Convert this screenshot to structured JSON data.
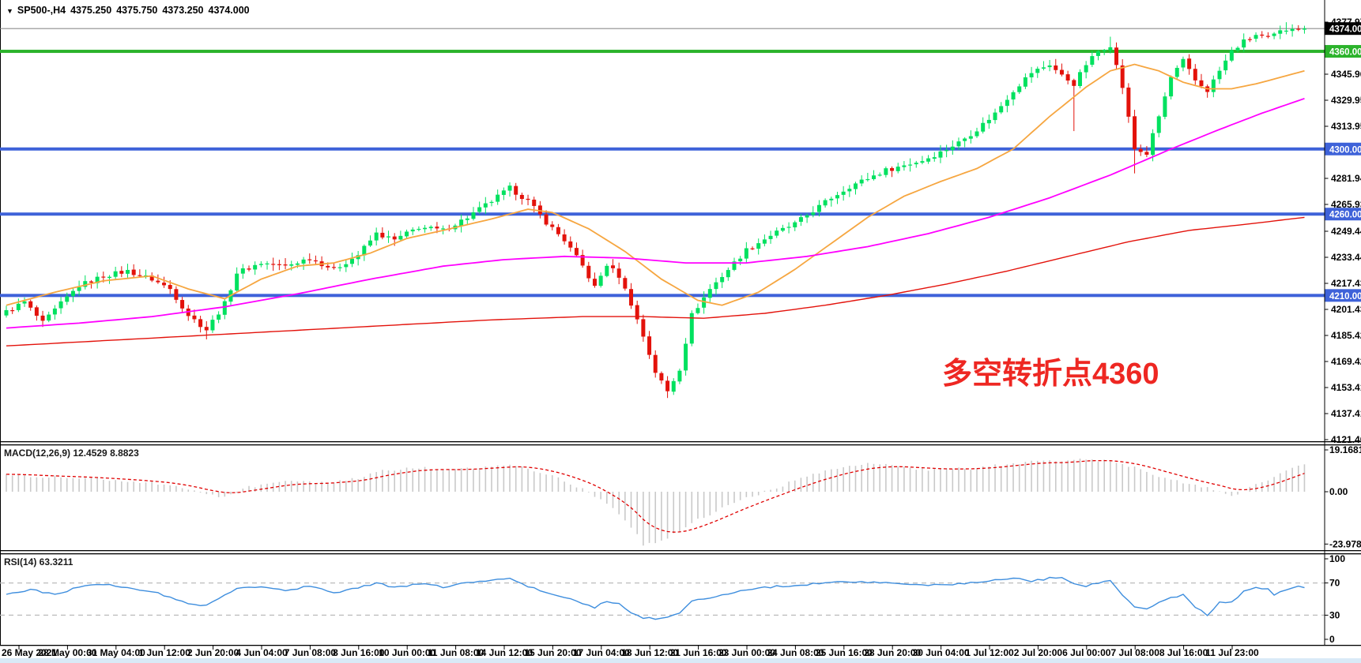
{
  "header": {
    "dropdown_icon": "▼",
    "symbol": "SP500-,H4",
    "open": "4375.250",
    "high": "4375.750",
    "low": "4373.250",
    "close": "4374.000"
  },
  "annotation": {
    "text": "多空转折点4360",
    "color": "#ee2722"
  },
  "colors": {
    "background": "#ffffff",
    "candle_up": "#00e15f",
    "candle_down": "#e3120b",
    "ma_fast": "#f6a640",
    "ma_medium": "#ff00ff",
    "ma_slow": "#e3120b",
    "level_green": "#2bb32b",
    "level_blue": "#3e62d9",
    "current_price_line": "#808080",
    "current_price_badge": "#000000",
    "macd_histogram": "#c9c9c9",
    "macd_signal": "#e00000",
    "rsi_line": "#3e8ede",
    "rsi_levels_dash": "#bbbbbb",
    "panel_border": "#000000",
    "bottom_strip": "#d9eaf7"
  },
  "price_axis": {
    "labels": [
      "4377.970",
      "4345.960",
      "4329.955",
      "4313.950",
      "4281.940",
      "4265.935",
      "4249.445",
      "4233.440",
      "4217.435",
      "4201.430",
      "4185.425",
      "4169.420",
      "4153.415",
      "4137.410",
      "4121.405"
    ],
    "badges": [
      {
        "label": "4374.000",
        "value": 4374.0,
        "type": "current-price",
        "bg": "#000000"
      },
      {
        "label": "4360.000",
        "value": 4360.0,
        "type": "level",
        "bg": "#2bb32b"
      },
      {
        "label": "4300.000",
        "value": 4300.0,
        "type": "level",
        "bg": "#3e62d9"
      },
      {
        "label": "4260.000",
        "value": 4260.0,
        "type": "level",
        "bg": "#3e62d9"
      },
      {
        "label": "4210.000",
        "value": 4210.0,
        "type": "level",
        "bg": "#3e62d9"
      }
    ]
  },
  "macd_panel": {
    "label": "MACD(12,26,9) 12.4529 8.8823",
    "axis_labels": [
      {
        "text": "19.1681",
        "value": 19.1681
      },
      {
        "text": "0.00",
        "value": 0
      },
      {
        "text": "-23.9781",
        "value": -23.9781
      }
    ]
  },
  "rsi_panel": {
    "label": "RSI(14) 63.3211",
    "axis_labels": [
      {
        "text": "100",
        "value": 100
      },
      {
        "text": "70",
        "value": 70
      },
      {
        "text": "30",
        "value": 30
      },
      {
        "text": "0",
        "value": 0
      }
    ]
  },
  "time_axis": {
    "labels": [
      "26 May 2021",
      "28 May 00:00",
      "31 May 04:00",
      "1 Jun 12:00",
      "2 Jun 20:00",
      "4 Jun 04:00",
      "7 Jun 08:00",
      "8 Jun 16:00",
      "10 Jun 00:00",
      "11 Jun 08:00",
      "14 Jun 12:00",
      "15 Jun 20:00",
      "17 Jun 04:00",
      "18 Jun 12:00",
      "21 Jun 16:00",
      "23 Jun 00:00",
      "24 Jun 08:00",
      "25 Jun 16:00",
      "28 Jun 20:00",
      "30 Jun 04:00",
      "1 Jul 12:00",
      "2 Jul 20:00",
      "6 Jul 00:00",
      "7 Jul 08:00",
      "8 Jul 16:00",
      "11 Jul 23:00"
    ]
  },
  "chart_data": {
    "type": "candlestick",
    "symbol": "SP500-",
    "timeframe": "H4",
    "bars": 215,
    "visible_price_range": [
      4121.405,
      4391.5
    ],
    "current_bar_ohlc": [
      4375.25,
      4375.75,
      4373.25,
      4374.0
    ],
    "close_path_anchors": [
      [
        0,
        4200
      ],
      [
        3,
        4206
      ],
      [
        6,
        4193
      ],
      [
        9,
        4205
      ],
      [
        12,
        4216
      ],
      [
        16,
        4222
      ],
      [
        20,
        4225
      ],
      [
        24,
        4220
      ],
      [
        27,
        4214
      ],
      [
        30,
        4198
      ],
      [
        33,
        4189
      ],
      [
        36,
        4205
      ],
      [
        38,
        4224
      ],
      [
        42,
        4230
      ],
      [
        46,
        4228
      ],
      [
        50,
        4233
      ],
      [
        54,
        4226
      ],
      [
        58,
        4235
      ],
      [
        61,
        4248
      ],
      [
        64,
        4244
      ],
      [
        68,
        4252
      ],
      [
        72,
        4250
      ],
      [
        76,
        4258
      ],
      [
        80,
        4268
      ],
      [
        83,
        4276
      ],
      [
        86,
        4268
      ],
      [
        89,
        4255
      ],
      [
        92,
        4244
      ],
      [
        95,
        4228
      ],
      [
        97,
        4215
      ],
      [
        99,
        4229
      ],
      [
        101,
        4222
      ],
      [
        103,
        4205
      ],
      [
        105,
        4185
      ],
      [
        107,
        4163
      ],
      [
        109,
        4151
      ],
      [
        111,
        4165
      ],
      [
        113,
        4198
      ],
      [
        116,
        4214
      ],
      [
        119,
        4226
      ],
      [
        122,
        4238
      ],
      [
        126,
        4247
      ],
      [
        130,
        4254
      ],
      [
        133,
        4262
      ],
      [
        136,
        4270
      ],
      [
        139,
        4277
      ],
      [
        142,
        4282
      ],
      [
        145,
        4287
      ],
      [
        148,
        4290
      ],
      [
        151,
        4293
      ],
      [
        154,
        4298
      ],
      [
        157,
        4304
      ],
      [
        160,
        4312
      ],
      [
        163,
        4322
      ],
      [
        166,
        4336
      ],
      [
        169,
        4347
      ],
      [
        172,
        4352
      ],
      [
        174,
        4345
      ],
      [
        176,
        4340
      ],
      [
        178,
        4352
      ],
      [
        180,
        4360
      ],
      [
        182,
        4364
      ],
      [
        184,
        4338
      ],
      [
        186,
        4300
      ],
      [
        188,
        4297
      ],
      [
        190,
        4320
      ],
      [
        192,
        4344
      ],
      [
        194,
        4354
      ],
      [
        196,
        4342
      ],
      [
        198,
        4336
      ],
      [
        200,
        4348
      ],
      [
        202,
        4360
      ],
      [
        204,
        4366
      ],
      [
        206,
        4370
      ],
      [
        208,
        4368
      ],
      [
        210,
        4372
      ],
      [
        212,
        4375
      ],
      [
        214,
        4374
      ]
    ],
    "wick_overrides": [
      {
        "b": 33,
        "low": 4183
      },
      {
        "b": 83,
        "high": 4279
      },
      {
        "b": 109,
        "low": 4147
      },
      {
        "b": 176,
        "low": 4311
      },
      {
        "b": 182,
        "high": 4369
      },
      {
        "b": 186,
        "low": 4285
      },
      {
        "b": 211,
        "high": 4377.9
      }
    ],
    "moving_averages": [
      {
        "name": "fast",
        "color": "#f6a640",
        "width": 1.8,
        "anchors": [
          [
            0,
            4204
          ],
          [
            8,
            4212
          ],
          [
            16,
            4219
          ],
          [
            24,
            4222
          ],
          [
            30,
            4214
          ],
          [
            36,
            4208
          ],
          [
            42,
            4220
          ],
          [
            48,
            4228
          ],
          [
            54,
            4230
          ],
          [
            60,
            4236
          ],
          [
            66,
            4245
          ],
          [
            72,
            4250
          ],
          [
            80,
            4257
          ],
          [
            86,
            4263
          ],
          [
            90,
            4261
          ],
          [
            96,
            4251
          ],
          [
            102,
            4237
          ],
          [
            108,
            4220
          ],
          [
            114,
            4207
          ],
          [
            118,
            4204
          ],
          [
            124,
            4212
          ],
          [
            130,
            4226
          ],
          [
            136,
            4242
          ],
          [
            142,
            4258
          ],
          [
            148,
            4271
          ],
          [
            154,
            4280
          ],
          [
            160,
            4288
          ],
          [
            166,
            4300
          ],
          [
            172,
            4320
          ],
          [
            178,
            4338
          ],
          [
            182,
            4348
          ],
          [
            186,
            4352
          ],
          [
            190,
            4348
          ],
          [
            194,
            4341
          ],
          [
            198,
            4337
          ],
          [
            202,
            4337
          ],
          [
            206,
            4340
          ],
          [
            210,
            4344
          ],
          [
            214,
            4348
          ]
        ]
      },
      {
        "name": "medium",
        "color": "#ff00ff",
        "width": 1.8,
        "anchors": [
          [
            0,
            4190
          ],
          [
            12,
            4193
          ],
          [
            24,
            4197
          ],
          [
            36,
            4203
          ],
          [
            48,
            4211
          ],
          [
            60,
            4220
          ],
          [
            72,
            4228
          ],
          [
            82,
            4232
          ],
          [
            92,
            4234
          ],
          [
            102,
            4233
          ],
          [
            112,
            4230
          ],
          [
            122,
            4230
          ],
          [
            132,
            4234
          ],
          [
            142,
            4240
          ],
          [
            152,
            4248
          ],
          [
            162,
            4258
          ],
          [
            172,
            4270
          ],
          [
            182,
            4284
          ],
          [
            192,
            4300
          ],
          [
            200,
            4312
          ],
          [
            207,
            4322
          ],
          [
            214,
            4331
          ]
        ]
      },
      {
        "name": "slow",
        "color": "#e3120b",
        "width": 1.4,
        "anchors": [
          [
            0,
            4179
          ],
          [
            20,
            4183
          ],
          [
            40,
            4187
          ],
          [
            60,
            4191
          ],
          [
            80,
            4195
          ],
          [
            95,
            4197
          ],
          [
            105,
            4197
          ],
          [
            115,
            4196
          ],
          [
            125,
            4199
          ],
          [
            135,
            4204
          ],
          [
            145,
            4210
          ],
          [
            155,
            4217
          ],
          [
            165,
            4225
          ],
          [
            175,
            4234
          ],
          [
            185,
            4243
          ],
          [
            195,
            4250
          ],
          [
            205,
            4254
          ],
          [
            214,
            4258
          ]
        ]
      }
    ],
    "horizontal_levels": [
      {
        "price": 4374.0,
        "style": "current",
        "color": "#808080",
        "width": 1
      },
      {
        "price": 4360.0,
        "style": "solid",
        "color": "#2bb32b",
        "width": 4
      },
      {
        "price": 4300.0,
        "style": "solid",
        "color": "#3e62d9",
        "width": 4
      },
      {
        "price": 4260.0,
        "style": "solid",
        "color": "#3e62d9",
        "width": 4
      },
      {
        "price": 4210.0,
        "style": "solid",
        "color": "#3e62d9",
        "width": 4
      }
    ],
    "macd": {
      "params": [
        12,
        26,
        9
      ],
      "main_value": 12.4529,
      "signal_value": 8.8823,
      "axis_range": [
        -23.9781,
        19.1681
      ],
      "main_anchors": [
        [
          0,
          8
        ],
        [
          6,
          7
        ],
        [
          12,
          6.5
        ],
        [
          20,
          5
        ],
        [
          26,
          3.5
        ],
        [
          30,
          1
        ],
        [
          33,
          -1.5
        ],
        [
          36,
          -2
        ],
        [
          40,
          2
        ],
        [
          46,
          4.5
        ],
        [
          52,
          4
        ],
        [
          58,
          6
        ],
        [
          62,
          9.5
        ],
        [
          68,
          11
        ],
        [
          74,
          10
        ],
        [
          80,
          11.5
        ],
        [
          84,
          12
        ],
        [
          88,
          9
        ],
        [
          92,
          5
        ],
        [
          96,
          0
        ],
        [
          99,
          -6
        ],
        [
          101,
          -10
        ],
        [
          103,
          -16
        ],
        [
          104,
          -20
        ],
        [
          105,
          -23.98
        ],
        [
          107,
          -23
        ],
        [
          109,
          -21
        ],
        [
          111,
          -18
        ],
        [
          114,
          -13
        ],
        [
          117,
          -9
        ],
        [
          120,
          -5
        ],
        [
          123,
          -2
        ],
        [
          126,
          1
        ],
        [
          130,
          5
        ],
        [
          134,
          8.5
        ],
        [
          138,
          11
        ],
        [
          142,
          12.5
        ],
        [
          146,
          12
        ],
        [
          150,
          10.5
        ],
        [
          154,
          10
        ],
        [
          158,
          10.5
        ],
        [
          162,
          11.5
        ],
        [
          166,
          13
        ],
        [
          170,
          14
        ],
        [
          174,
          13.5
        ],
        [
          178,
          15
        ],
        [
          182,
          14
        ],
        [
          186,
          11
        ],
        [
          190,
          7
        ],
        [
          194,
          4
        ],
        [
          197,
          2
        ],
        [
          200,
          0.5
        ],
        [
          202,
          -1.8
        ],
        [
          204,
          0.5
        ],
        [
          206,
          3
        ],
        [
          208,
          5.5
        ],
        [
          210,
          8
        ],
        [
          212,
          10.5
        ],
        [
          214,
          12.45
        ]
      ]
    },
    "rsi": {
      "period": 14,
      "value": 63.3211,
      "levels": [
        70,
        30
      ],
      "anchors": [
        [
          0,
          55
        ],
        [
          4,
          62
        ],
        [
          8,
          55
        ],
        [
          12,
          65
        ],
        [
          16,
          68
        ],
        [
          20,
          64
        ],
        [
          24,
          60
        ],
        [
          27,
          52
        ],
        [
          30,
          44
        ],
        [
          33,
          42
        ],
        [
          36,
          55
        ],
        [
          38,
          64
        ],
        [
          42,
          66
        ],
        [
          46,
          61
        ],
        [
          50,
          66
        ],
        [
          54,
          58
        ],
        [
          58,
          64
        ],
        [
          61,
          70
        ],
        [
          64,
          64
        ],
        [
          68,
          69
        ],
        [
          72,
          65
        ],
        [
          76,
          70
        ],
        [
          80,
          74
        ],
        [
          83,
          75
        ],
        [
          86,
          66
        ],
        [
          89,
          58
        ],
        [
          92,
          52
        ],
        [
          95,
          44
        ],
        [
          97,
          40
        ],
        [
          99,
          48
        ],
        [
          101,
          44
        ],
        [
          103,
          32
        ],
        [
          105,
          27
        ],
        [
          107,
          25
        ],
        [
          109,
          28
        ],
        [
          111,
          33
        ],
        [
          113,
          47
        ],
        [
          116,
          52
        ],
        [
          119,
          57
        ],
        [
          122,
          62
        ],
        [
          126,
          65
        ],
        [
          130,
          67
        ],
        [
          133,
          69
        ],
        [
          136,
          71
        ],
        [
          139,
          72
        ],
        [
          142,
          71
        ],
        [
          145,
          70
        ],
        [
          148,
          68
        ],
        [
          151,
          67
        ],
        [
          154,
          68
        ],
        [
          157,
          69
        ],
        [
          160,
          71
        ],
        [
          163,
          73
        ],
        [
          166,
          76
        ],
        [
          169,
          72
        ],
        [
          172,
          76
        ],
        [
          174,
          78
        ],
        [
          176,
          70
        ],
        [
          178,
          66
        ],
        [
          180,
          70
        ],
        [
          182,
          72
        ],
        [
          184,
          55
        ],
        [
          186,
          40
        ],
        [
          188,
          37
        ],
        [
          190,
          45
        ],
        [
          192,
          52
        ],
        [
          194,
          55
        ],
        [
          196,
          40
        ],
        [
          198,
          30
        ],
        [
          200,
          46
        ],
        [
          202,
          46
        ],
        [
          204,
          60
        ],
        [
          206,
          64
        ],
        [
          208,
          62
        ],
        [
          209,
          55
        ],
        [
          211,
          62
        ],
        [
          213,
          65
        ],
        [
          214,
          63.3
        ]
      ]
    }
  }
}
